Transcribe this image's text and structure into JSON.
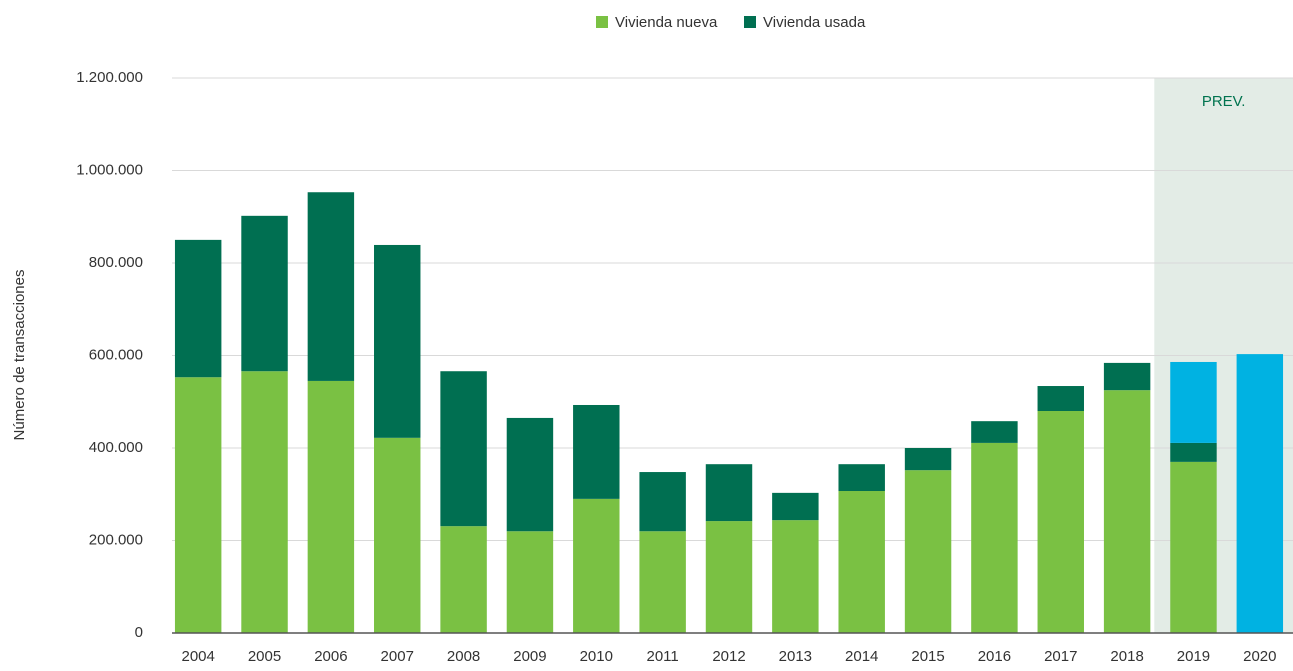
{
  "chart_data": {
    "type": "stacked-bar",
    "y_label": "Número de transacciones",
    "annotation": "PREV.",
    "categories": [
      "2004",
      "2005",
      "2006",
      "2007",
      "2008",
      "2009",
      "2010",
      "2011",
      "2012",
      "2013",
      "2014",
      "2015",
      "2016",
      "2017",
      "2018",
      "2019",
      "2020"
    ],
    "series": [
      {
        "name": "Vivienda nueva",
        "color": "#7ac143",
        "values": [
          553000,
          566000,
          545000,
          422000,
          231000,
          220000,
          290000,
          220000,
          242000,
          244000,
          307000,
          352000,
          411000,
          480000,
          525000,
          370000,
          null
        ]
      },
      {
        "name": "Vivienda usada",
        "color": "#006f51",
        "values": [
          297000,
          336000,
          408000,
          417000,
          335000,
          245000,
          203000,
          128000,
          123000,
          59000,
          58000,
          48000,
          47000,
          54000,
          59000,
          41000,
          null
        ]
      },
      {
        "color": "#00b2e2",
        "values": [
          null,
          null,
          null,
          null,
          null,
          null,
          null,
          null,
          null,
          null,
          null,
          null,
          null,
          null,
          null,
          175000,
          603000
        ]
      }
    ],
    "ylim": [
      0,
      1200000
    ],
    "yticks": [
      0,
      {
        "value": 200000,
        "label": "200.000"
      },
      {
        "value": 400000,
        "label": "400.000"
      },
      {
        "value": 600000,
        "label": "600.000"
      },
      {
        "value": 800000,
        "label": "800.000"
      },
      {
        "value": 1000000,
        "label": "1.000.000"
      },
      {
        "value": 1200000,
        "label": "1.200.000"
      }
    ],
    "grid": true,
    "legend": "top"
  }
}
